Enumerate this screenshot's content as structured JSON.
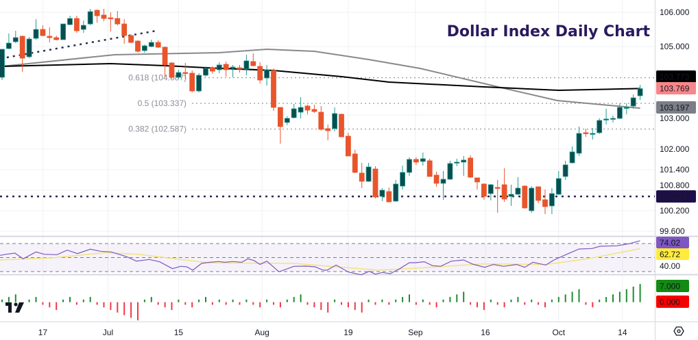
{
  "chart_data": {
    "type": "candlestick",
    "title": "Dollar Index Daily Chart",
    "colors": {
      "up_body": "#0a4d50",
      "up_wick": "#22998e",
      "down": "#e8552c",
      "sma200": "#000000",
      "sma100": "#888888",
      "trendline": "#2a2e4a",
      "support": "#2a2450",
      "rsi": "#7e57c2",
      "rsi_ma": "#f5e27a",
      "hist_up": "#1e8c2e",
      "hist_down": "#f23645"
    },
    "price_axis_ticks": [
      "106.000",
      "105.000",
      "103.000",
      "102.000",
      "101.400",
      "100.800",
      "100.200",
      "99.600"
    ],
    "ylim": [
      99.6,
      106.2
    ],
    "x_ticks": [
      "17",
      "Jul",
      "15",
      "Aug",
      "19",
      "Sep",
      "16",
      "Oct",
      "14"
    ],
    "candles_ohlc": [
      [
        104.1,
        104.92,
        104.02,
        104.92
      ],
      [
        104.94,
        105.38,
        104.92,
        105.1
      ],
      [
        105.14,
        105.46,
        105.1,
        105.26
      ],
      [
        105.3,
        105.32,
        104.26,
        104.66
      ],
      [
        104.7,
        105.28,
        104.66,
        105.22
      ],
      [
        105.24,
        105.8,
        105.2,
        105.5
      ],
      [
        105.5,
        105.62,
        105.3,
        105.32
      ],
      [
        105.3,
        105.56,
        105.12,
        105.26
      ],
      [
        105.26,
        105.32,
        105.18,
        105.2
      ],
      [
        105.2,
        105.66,
        105.2,
        105.66
      ],
      [
        105.64,
        105.9,
        105.62,
        105.82
      ],
      [
        105.82,
        105.9,
        105.4,
        105.46
      ],
      [
        105.5,
        105.76,
        105.4,
        105.62
      ],
      [
        105.66,
        106.1,
        105.62,
        106.02
      ],
      [
        106.06,
        106.08,
        105.7,
        105.9
      ],
      [
        105.92,
        106.1,
        105.74,
        105.82
      ],
      [
        105.84,
        106.0,
        105.44,
        105.82
      ],
      [
        105.82,
        106.04,
        105.62,
        105.66
      ],
      [
        105.66,
        105.8,
        105.08,
        105.32
      ],
      [
        105.32,
        105.36,
        105.1,
        105.12
      ],
      [
        105.16,
        105.18,
        104.82,
        104.86
      ],
      [
        104.88,
        105.06,
        104.82,
        105.02
      ],
      [
        105.0,
        105.2,
        104.98,
        105.12
      ],
      [
        105.12,
        105.18,
        104.96,
        104.98
      ],
      [
        104.98,
        105.0,
        104.1,
        104.46
      ],
      [
        104.52,
        104.54,
        104.06,
        104.1
      ],
      [
        104.1,
        104.32,
        104.06,
        104.24
      ],
      [
        104.24,
        104.52,
        104.06,
        104.22
      ],
      [
        104.22,
        104.3,
        103.66,
        103.7
      ],
      [
        103.7,
        104.22,
        103.66,
        104.16
      ],
      [
        104.16,
        104.42,
        104.12,
        104.36
      ],
      [
        104.38,
        104.42,
        104.2,
        104.28
      ],
      [
        104.32,
        104.54,
        104.22,
        104.46
      ],
      [
        104.48,
        104.56,
        104.12,
        104.32
      ],
      [
        104.38,
        104.46,
        104.1,
        104.4
      ],
      [
        104.38,
        104.46,
        104.24,
        104.34
      ],
      [
        104.34,
        104.76,
        104.16,
        104.58
      ],
      [
        104.56,
        104.8,
        104.42,
        104.44
      ],
      [
        104.42,
        104.54,
        103.92,
        104.02
      ],
      [
        104.08,
        104.46,
        103.86,
        104.32
      ],
      [
        104.3,
        104.36,
        103.12,
        103.22
      ],
      [
        103.22,
        103.22,
        102.16,
        102.66
      ],
      [
        102.78,
        102.96,
        102.7,
        102.9
      ],
      [
        102.92,
        103.32,
        102.9,
        103.18
      ],
      [
        103.08,
        103.52,
        102.9,
        103.22
      ],
      [
        103.26,
        103.3,
        103.02,
        103.14
      ],
      [
        103.16,
        103.3,
        103.06,
        103.1
      ],
      [
        103.08,
        103.26,
        102.54,
        102.58
      ],
      [
        102.6,
        102.72,
        102.26,
        102.54
      ],
      [
        102.6,
        103.22,
        102.52,
        103.04
      ],
      [
        103.02,
        103.04,
        102.36,
        102.36
      ],
      [
        102.38,
        102.48,
        101.8,
        101.8
      ],
      [
        101.86,
        101.98,
        101.3,
        101.32
      ],
      [
        101.3,
        101.6,
        100.86,
        101.06
      ],
      [
        101.06,
        101.6,
        101.04,
        101.48
      ],
      [
        101.42,
        101.5,
        100.56,
        100.6
      ],
      [
        100.62,
        100.86,
        100.48,
        100.8
      ],
      [
        100.76,
        100.88,
        100.44,
        100.46
      ],
      [
        100.48,
        101.1,
        100.46,
        100.98
      ],
      [
        100.92,
        101.52,
        100.82,
        101.32
      ],
      [
        101.32,
        101.76,
        101.22,
        101.7
      ],
      [
        101.7,
        101.76,
        101.54,
        101.62
      ],
      [
        101.64,
        101.9,
        101.52,
        101.72
      ],
      [
        101.66,
        101.72,
        101.2,
        101.2
      ],
      [
        101.24,
        101.34,
        100.9,
        101.0
      ],
      [
        101.0,
        101.36,
        100.52,
        101.12
      ],
      [
        101.12,
        101.66,
        101.1,
        101.58
      ],
      [
        101.6,
        101.72,
        101.5,
        101.62
      ],
      [
        101.62,
        101.8,
        101.22,
        101.68
      ],
      [
        101.74,
        101.82,
        101.16,
        101.18
      ],
      [
        101.16,
        101.16,
        100.82,
        101.04
      ],
      [
        100.98,
        101.0,
        100.52,
        100.62
      ],
      [
        100.7,
        100.98,
        100.5,
        100.96
      ],
      [
        100.88,
        101.1,
        100.14,
        100.86
      ],
      [
        100.96,
        101.44,
        100.46,
        100.54
      ],
      [
        100.62,
        100.96,
        100.34,
        100.68
      ],
      [
        100.68,
        101.18,
        100.66,
        100.86
      ],
      [
        100.92,
        100.94,
        100.26,
        100.28
      ],
      [
        100.2,
        100.92,
        100.14,
        100.86
      ],
      [
        100.9,
        100.9,
        100.42,
        100.5
      ],
      [
        100.52,
        100.82,
        100.1,
        100.32
      ],
      [
        100.34,
        100.86,
        100.1,
        100.7
      ],
      [
        100.68,
        101.36,
        100.66,
        101.14
      ],
      [
        101.2,
        101.66,
        101.1,
        101.54
      ],
      [
        101.6,
        102.08,
        101.58,
        101.92
      ],
      [
        101.88,
        102.66,
        101.8,
        102.46
      ],
      [
        102.48,
        102.6,
        102.36,
        102.46
      ],
      [
        102.44,
        102.62,
        102.28,
        102.46
      ],
      [
        102.48,
        102.9,
        102.44,
        102.84
      ],
      [
        102.86,
        103.18,
        102.72,
        102.88
      ],
      [
        102.88,
        102.98,
        102.78,
        102.9
      ],
      [
        102.9,
        103.34,
        102.88,
        103.22
      ],
      [
        103.2,
        103.34,
        103.02,
        103.22
      ],
      [
        103.26,
        103.6,
        103.18,
        103.5
      ],
      [
        103.56,
        103.88,
        103.44,
        103.769
      ]
    ],
    "sma200": [
      [
        1,
        104.42
      ],
      [
        17,
        104.5
      ],
      [
        25,
        104.44
      ],
      [
        31,
        104.38
      ],
      [
        41,
        104.3
      ],
      [
        51,
        104.12
      ],
      [
        58,
        103.96
      ],
      [
        72,
        103.82
      ],
      [
        83,
        103.72
      ],
      [
        95,
        103.773
      ]
    ],
    "sma100": [
      [
        1,
        104.42
      ],
      [
        17.6,
        104.76
      ],
      [
        33,
        104.82
      ],
      [
        40,
        104.92
      ],
      [
        47,
        104.86
      ],
      [
        55,
        104.62
      ],
      [
        62.6,
        104.36
      ],
      [
        74.5,
        103.8
      ],
      [
        82.8,
        103.42
      ],
      [
        95,
        103.197
      ]
    ],
    "trendline": [
      [
        1.7,
        104.68
      ],
      [
        23.7,
        105.46
      ]
    ],
    "fib_levels": [
      {
        "label": "0.618 (104.087)",
        "value": 104.087
      },
      {
        "label": "0.5 (103.337)",
        "value": 103.337
      },
      {
        "label": "0.382 (102.587)",
        "value": 102.587
      }
    ],
    "support_level": 100.617,
    "price_labels": [
      {
        "text": "103.773",
        "value": 103.773,
        "bg": "#000000",
        "fg": "#ffffff"
      },
      {
        "text": "103.769",
        "value": 103.769,
        "bg": "#f7868a",
        "fg": "#ffffff"
      },
      {
        "text": "103.197",
        "value": 103.197,
        "bg": "#7b7e87",
        "fg": "#ffffff"
      },
      {
        "text": "100.617",
        "value": 100.617,
        "bg": "#1e0f4a",
        "fg": "#ffffff"
      }
    ],
    "rsi": {
      "levels": [
        70,
        50,
        30
      ],
      "axis_tick": "40.00",
      "last": "74.02",
      "ma_last": "62.72",
      "points": [
        [
          0.7,
          53.1
        ],
        [
          1.6,
          54.7
        ],
        [
          2.9,
          56.3
        ],
        [
          4.1,
          48.2
        ],
        [
          6,
          58
        ],
        [
          7.2,
          54.7
        ],
        [
          9.1,
          54.1
        ],
        [
          10.6,
          60.6
        ],
        [
          12.1,
          55.7
        ],
        [
          14,
          61.9
        ],
        [
          15.5,
          59
        ],
        [
          17.1,
          58
        ],
        [
          19.3,
          51.5
        ],
        [
          20.8,
          44.9
        ],
        [
          22.7,
          47.3
        ],
        [
          24.2,
          44
        ],
        [
          26.1,
          34.2
        ],
        [
          27.3,
          37.5
        ],
        [
          28.2,
          36.8
        ],
        [
          29.1,
          32
        ],
        [
          30.4,
          41.7
        ],
        [
          31.6,
          43.3
        ],
        [
          32.9,
          44.3
        ],
        [
          33.8,
          43.3
        ],
        [
          35,
          44.3
        ],
        [
          36.3,
          43.3
        ],
        [
          37.2,
          48.2
        ],
        [
          38.1,
          45.9
        ],
        [
          39,
          40.1
        ],
        [
          40,
          44.9
        ],
        [
          41.8,
          29.7
        ],
        [
          44,
          37.5
        ],
        [
          45.8,
          37.8
        ],
        [
          47.1,
          36.8
        ],
        [
          48.3,
          32
        ],
        [
          48.9,
          32
        ],
        [
          50.2,
          39.4
        ],
        [
          52,
          29.4
        ],
        [
          53.9,
          25.5
        ],
        [
          55.1,
          30.3
        ],
        [
          56,
          26.4
        ],
        [
          57,
          28.7
        ],
        [
          58.2,
          27.1
        ],
        [
          59.5,
          33.6
        ],
        [
          61,
          42.7
        ],
        [
          61.9,
          42.7
        ],
        [
          63.2,
          44
        ],
        [
          64.4,
          38.5
        ],
        [
          65.6,
          37.5
        ],
        [
          67.2,
          44.9
        ],
        [
          69,
          46.6
        ],
        [
          70.3,
          40.7
        ],
        [
          72.1,
          36.1
        ],
        [
          73.4,
          40.1
        ],
        [
          74.9,
          37.5
        ],
        [
          76.8,
          40.1
        ],
        [
          78,
          36.1
        ],
        [
          79.2,
          43.3
        ],
        [
          81.1,
          39.4
        ],
        [
          82.3,
          46.6
        ],
        [
          84.2,
          54.7
        ],
        [
          86,
          62.2
        ],
        [
          87.9,
          62.9
        ],
        [
          89.1,
          66.1
        ],
        [
          91.6,
          66.8
        ],
        [
          93.5,
          70
        ],
        [
          95,
          74.02
        ]
      ],
      "ma_points": [
        [
          0.7,
          46.6
        ],
        [
          8.7,
          49.8
        ],
        [
          16.2,
          57
        ],
        [
          21.1,
          54.7
        ],
        [
          27.3,
          47.3
        ],
        [
          31.6,
          42.4
        ],
        [
          44,
          41.7
        ],
        [
          50.2,
          36.8
        ],
        [
          56.4,
          32
        ],
        [
          62.5,
          35.2
        ],
        [
          71.8,
          41
        ],
        [
          81.1,
          40.1
        ],
        [
          87.3,
          48.2
        ],
        [
          95,
          62.72
        ]
      ]
    },
    "histogram": {
      "pos_label": "7.000",
      "neg_label": "0.000",
      "values": [
        1,
        2,
        3,
        0,
        1,
        2,
        -1,
        -2,
        -3,
        1,
        2,
        -1,
        1,
        2,
        -1,
        -2,
        -3,
        -4,
        -5,
        -6,
        -7,
        1,
        2,
        -1,
        -2,
        -3,
        1,
        -1,
        -2,
        1,
        2,
        -1,
        1,
        -1,
        1,
        -1,
        1,
        -1,
        -2,
        1,
        -1,
        -2,
        1,
        2,
        3,
        -1,
        -2,
        -3,
        -4,
        1,
        -1,
        -2,
        -3,
        -4,
        1,
        -1,
        1,
        -1,
        1,
        2,
        3,
        -1,
        1,
        -1,
        -2,
        1,
        2,
        3,
        4,
        -1,
        -2,
        -3,
        1,
        -1,
        -2,
        1,
        2,
        -1,
        1,
        -1,
        -2,
        1,
        2,
        3,
        4,
        5,
        -1,
        -2,
        1,
        2,
        3,
        4,
        5,
        6,
        7
      ]
    }
  },
  "icons": {
    "logo": "tradingview-logo-icon",
    "settings": "settings-hexagon-icon"
  }
}
